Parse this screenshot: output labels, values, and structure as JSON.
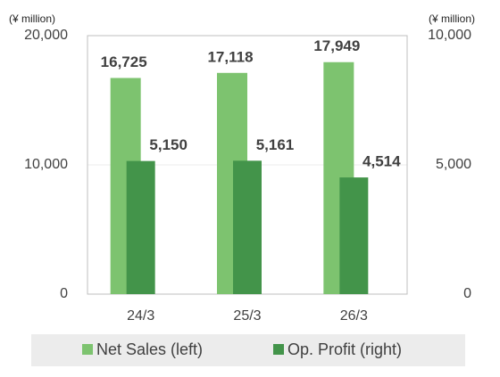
{
  "chart_data": {
    "type": "bar",
    "y_label": "(¥ million)",
    "y2_label": "(¥ million)",
    "categories": [
      "24/3",
      "25/3",
      "26/3"
    ],
    "series": [
      {
        "name": "Net Sales (left)",
        "color": "#7dc36f",
        "values": [
          16725,
          17118,
          17949
        ],
        "value_labels": [
          "16,725",
          "17,118",
          "17,949"
        ]
      },
      {
        "name": "Op. Profit (right)",
        "color": "#43944a",
        "axis": "y2",
        "values": [
          5150,
          5161,
          4514
        ],
        "value_labels": [
          "5,150",
          "5,161",
          "4,514"
        ]
      }
    ],
    "ylim": [
      0,
      20000
    ],
    "yticks": [
      0,
      {
        "value": 10000,
        "label": "10,000"
      },
      {
        "value": 20000,
        "label": "20,000"
      }
    ],
    "y2lim": [
      0,
      10000
    ],
    "y2ticks": [
      0,
      {
        "value": 5000,
        "label": "5,000"
      },
      {
        "value": 10000,
        "label": "10,000"
      }
    ],
    "grid": true,
    "legend": "bottom"
  }
}
